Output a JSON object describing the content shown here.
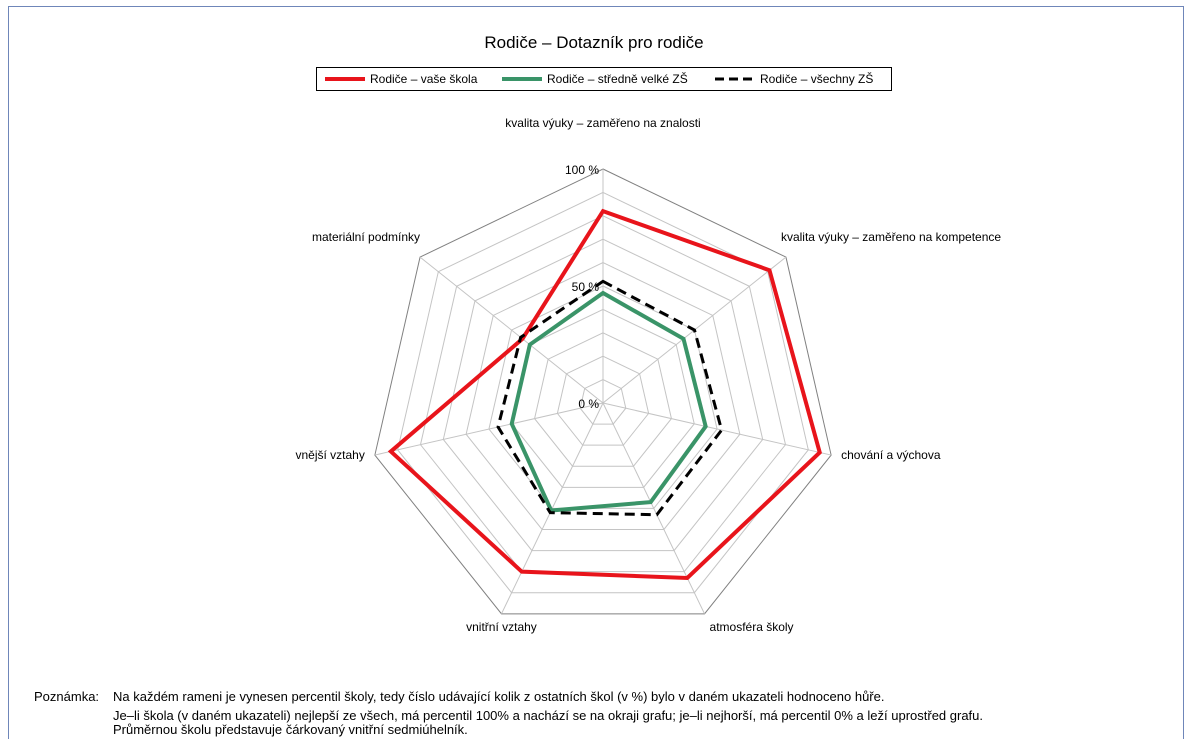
{
  "chart_data": {
    "type": "radar",
    "title": "Rodiče – Dotazník pro rodiče",
    "axes": [
      "kvalita výuky – zaměřeno na znalosti",
      "kvalita výuky – zaměřeno na kompetence",
      "chování a výchova",
      "atmosféra školy",
      "vnitřní vztahy",
      "vnější vztahy",
      "materiální podmínky"
    ],
    "tick_labels": [
      "0 %",
      "50 %",
      "100 %"
    ],
    "rlim": [
      0,
      100
    ],
    "grid_rings": 10,
    "series": [
      {
        "name": "Rodiče – vaše škola",
        "color": "#e8141b",
        "style": "solid",
        "values": [
          82,
          91,
          95,
          83,
          80,
          93,
          44
        ]
      },
      {
        "name": "Rodiče – středně velké ZŠ",
        "color": "#3a9468",
        "style": "solid",
        "values": [
          47,
          44,
          45,
          47,
          51,
          40,
          40
        ]
      },
      {
        "name": "Rodiče – všechny ZŠ",
        "color": "#000000",
        "style": "dashed",
        "values": [
          52,
          50,
          52,
          53,
          52,
          46,
          45
        ]
      }
    ]
  },
  "legend": {
    "items": [
      "Rodiče – vaše škola",
      "Rodiče – středně velké ZŠ",
      "Rodiče – všechny ZŠ"
    ]
  },
  "note": {
    "label": "Poznámka:",
    "line1": "Na každém rameni je vynesen percentil školy, tedy číslo udávající kolik z ostatních škol (v %) bylo v daném ukazateli hodnoceno hůře.",
    "line2": "Je–li škola (v daném ukazateli) nejlepší ze všech, má percentil 100% a nachází se na okraji grafu; je–li nejhorší, má percentil 0% a leží uprostřed grafu.",
    "line3": "Průměrnou školu představuje čárkovaný vnitřní sedmiúhelník."
  }
}
